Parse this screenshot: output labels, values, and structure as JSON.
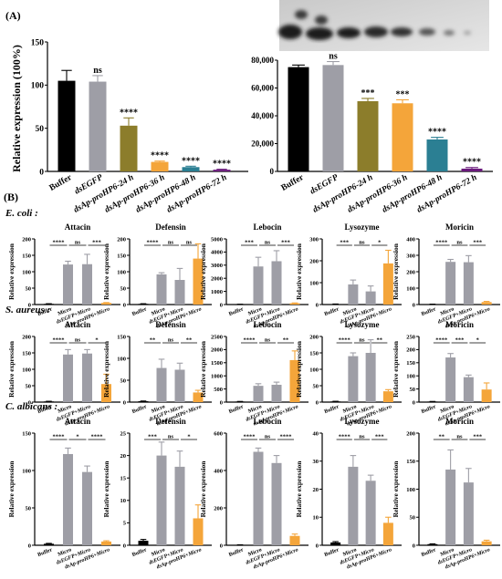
{
  "panel_a_label": "(A)",
  "panel_b_label": "(B)",
  "colors": {
    "black": "#000000",
    "grey": "#9e9ea6",
    "olive": "#8c7d2b",
    "orange": "#f4a53a",
    "teal": "#2b7f93",
    "purple": "#6a1a7c"
  },
  "chart_data": [
    {
      "id": "a1",
      "type": "bar",
      "ylabel": "Relative expression (100%)",
      "ylim": [
        0,
        150
      ],
      "yticks": [
        "0",
        "50",
        "100",
        "150"
      ],
      "categories": [
        "Buffer",
        "dsEGFP",
        "dsAp-proHP6-24 h",
        "dsAp-proHP6-36 h",
        "dsAp-proHP6-48 h",
        "dsAp-proHP6-72 h"
      ],
      "values": [
        105,
        104,
        53,
        11,
        5,
        2
      ],
      "errors": [
        12,
        7,
        9,
        1,
        1,
        0.5
      ],
      "bar_colors": [
        "black",
        "grey",
        "olive",
        "orange",
        "teal",
        "purple"
      ],
      "annotations": [
        "",
        "ns",
        "****",
        "****",
        "****",
        "****"
      ]
    },
    {
      "id": "a2",
      "type": "bar",
      "ylabel": "",
      "ylim": [
        0,
        80000
      ],
      "yticks": [
        "0",
        "20,000",
        "40,000",
        "60,000",
        "80,000"
      ],
      "categories": [
        "Buffer",
        "dsEGFP",
        "dsAp-proHP6-24 h",
        "dsAp-proHP6-36 h",
        "dsAp-proHP6-48 h",
        "dsAp-proHP6-72 h"
      ],
      "values": [
        75000,
        76500,
        50500,
        49000,
        23000,
        2000
      ],
      "errors": [
        1500,
        2500,
        2000,
        2500,
        1500,
        800
      ],
      "bar_colors": [
        "black",
        "grey",
        "olive",
        "orange",
        "teal",
        "purple"
      ],
      "annotations": [
        "",
        "ns",
        "***",
        "***",
        "****",
        "****"
      ]
    },
    {
      "id": "ec_attacin",
      "type": "bar",
      "row": "E. coli :",
      "title": "Attacin",
      "ylabel": "Relative expression",
      "ylim": [
        0,
        200
      ],
      "yticks": [
        "0",
        "50",
        "100",
        "150",
        "200"
      ],
      "categories": [
        "Buffer",
        "Micro",
        "dsEGFP+Micro",
        "dsAp-proHP6+Micro"
      ],
      "values": [
        2,
        122,
        123,
        5
      ],
      "errors": [
        0.5,
        10,
        30,
        1
      ],
      "bar_colors": [
        "black",
        "grey",
        "grey",
        "orange"
      ],
      "sig": [
        "****",
        "ns",
        "***"
      ]
    },
    {
      "id": "ec_defensin",
      "type": "bar",
      "title": "Defensin",
      "ylabel": "Relative expression",
      "ylim": [
        0,
        200
      ],
      "yticks": [
        "0",
        "50",
        "100",
        "150",
        "200"
      ],
      "categories": [
        "Buffer",
        "Micro",
        "dsEGFP+Micro",
        "dsAp-proHP6+Micro"
      ],
      "values": [
        2,
        92,
        75,
        140
      ],
      "errors": [
        0.5,
        5,
        35,
        45
      ],
      "bar_colors": [
        "black",
        "grey",
        "grey",
        "orange"
      ],
      "sig": [
        "****",
        "ns",
        "ns"
      ]
    },
    {
      "id": "ec_lebocin",
      "type": "bar",
      "title": "Lebocin",
      "ylabel": "Relative expression",
      "ylim": [
        0,
        5000
      ],
      "yticks": [
        "0",
        "1000",
        "2000",
        "3000",
        "4000",
        "5000"
      ],
      "categories": [
        "Buffer",
        "Micro",
        "dsEGFP+Micro",
        "dsAp-proHP6+Micro"
      ],
      "values": [
        20,
        2900,
        3300,
        100
      ],
      "errors": [
        5,
        700,
        800,
        20
      ],
      "bar_colors": [
        "black",
        "grey",
        "grey",
        "orange"
      ],
      "sig": [
        "***",
        "ns",
        "***"
      ]
    },
    {
      "id": "ec_lysozyme",
      "type": "bar",
      "title": "Lysozyme",
      "ylabel": "Relative expression",
      "ylim": [
        0,
        300
      ],
      "yticks": [
        "0",
        "100",
        "200",
        "300"
      ],
      "categories": [
        "Buffer",
        "Micro",
        "dsEGFP+Micro",
        "dsAp-proHP6+Micro"
      ],
      "values": [
        2,
        92,
        60,
        188
      ],
      "errors": [
        0.5,
        20,
        25,
        60
      ],
      "bar_colors": [
        "black",
        "grey",
        "grey",
        "orange"
      ],
      "sig": [
        "***",
        "ns",
        "*"
      ]
    },
    {
      "id": "ec_moricin",
      "type": "bar",
      "title": "Moricin",
      "ylabel": "Relative expression",
      "ylim": [
        0,
        400
      ],
      "yticks": [
        "0",
        "100",
        "200",
        "300",
        "400"
      ],
      "categories": [
        "Buffer",
        "Micro",
        "dsEGFP+Micro",
        "dsAp-proHP6+Micro"
      ],
      "values": [
        2,
        260,
        258,
        15
      ],
      "errors": [
        0.5,
        15,
        40,
        4
      ],
      "bar_colors": [
        "black",
        "grey",
        "grey",
        "orange"
      ],
      "sig": [
        "****",
        "ns",
        "***"
      ]
    },
    {
      "id": "sa_attacin",
      "type": "bar",
      "row": "S. aureus :",
      "title": "Attacin",
      "ylabel": "Relative expression",
      "ylim": [
        0,
        200
      ],
      "yticks": [
        "0",
        "50",
        "100",
        "150",
        "200"
      ],
      "categories": [
        "Buffer",
        "Micro",
        "dsEGFP+Micro",
        "dsAp-proHP6+Micro"
      ],
      "values": [
        2,
        145,
        148,
        55
      ],
      "errors": [
        0.5,
        15,
        12,
        30
      ],
      "bar_colors": [
        "black",
        "grey",
        "grey",
        "orange"
      ],
      "sig": [
        "****",
        "ns",
        "*"
      ]
    },
    {
      "id": "sa_defensin",
      "type": "bar",
      "title": "Defensin",
      "ylabel": "Relative expression",
      "ylim": [
        0,
        150
      ],
      "yticks": [
        "0",
        "50",
        "100",
        "150"
      ],
      "categories": [
        "Buffer",
        "Micro",
        "dsEGFP+Micro",
        "dsAp-proHP6+Micro"
      ],
      "values": [
        2,
        78,
        74,
        22
      ],
      "errors": [
        0.5,
        20,
        15,
        5
      ],
      "bar_colors": [
        "black",
        "grey",
        "grey",
        "orange"
      ],
      "sig": [
        "**",
        "ns",
        "**"
      ]
    },
    {
      "id": "sa_lebocin",
      "type": "bar",
      "title": "Lebocin",
      "ylabel": "Relative expression",
      "ylim": [
        0,
        2500
      ],
      "yticks": [
        "0",
        "500",
        "1000",
        "1500",
        "2000",
        "2500"
      ],
      "categories": [
        "Buffer",
        "Micro",
        "dsEGFP+Micro",
        "dsAp-proHP6+Micro"
      ],
      "values": [
        20,
        620,
        660,
        1600
      ],
      "errors": [
        5,
        80,
        100,
        350
      ],
      "bar_colors": [
        "black",
        "grey",
        "grey",
        "orange"
      ],
      "sig": [
        "****",
        "ns",
        "**"
      ]
    },
    {
      "id": "sa_lysozyme",
      "type": "bar",
      "title": "Lysozyme",
      "ylabel": "Relative expression",
      "ylim": [
        0,
        200
      ],
      "yticks": [
        "0",
        "50",
        "100",
        "150",
        "200"
      ],
      "categories": [
        "Buffer",
        "Micro",
        "dsEGFP+Micro",
        "dsAp-proHP6+Micro"
      ],
      "values": [
        2,
        140,
        150,
        33
      ],
      "errors": [
        0.5,
        10,
        40,
        5
      ],
      "bar_colors": [
        "black",
        "grey",
        "grey",
        "orange"
      ],
      "sig": [
        "****",
        "ns",
        "**"
      ]
    },
    {
      "id": "sa_moricin",
      "type": "bar",
      "title": "Moricin",
      "ylabel": "Relative expression",
      "ylim": [
        0,
        250
      ],
      "yticks": [
        "0",
        "50",
        "100",
        "150",
        "200",
        "250"
      ],
      "categories": [
        "Buffer",
        "Micro",
        "dsEGFP+Micro",
        "dsAp-proHP6+Micro"
      ],
      "values": [
        2,
        170,
        95,
        48
      ],
      "errors": [
        0.5,
        15,
        8,
        25
      ],
      "bar_colors": [
        "black",
        "grey",
        "grey",
        "orange"
      ],
      "sig": [
        "****",
        "***",
        "*"
      ]
    },
    {
      "id": "ca_attacin",
      "type": "bar",
      "row": "C. albicans :",
      "title": "Attacin",
      "ylabel": "Relative expression",
      "ylim": [
        0,
        150
      ],
      "yticks": [
        "0",
        "50",
        "100",
        "150"
      ],
      "categories": [
        "Buffer",
        "Micro",
        "dsEGFP+Micro",
        "dsAp-proHP6+Micro"
      ],
      "values": [
        2,
        122,
        98,
        5
      ],
      "errors": [
        0.5,
        8,
        8,
        1
      ],
      "bar_colors": [
        "black",
        "grey",
        "grey",
        "orange"
      ],
      "sig": [
        "****",
        "*",
        "****"
      ]
    },
    {
      "id": "ca_defensin",
      "type": "bar",
      "title": "Defensin",
      "ylabel": "Relative expression",
      "ylim": [
        0,
        25
      ],
      "yticks": [
        "0",
        "5",
        "10",
        "15",
        "20",
        "25"
      ],
      "categories": [
        "Buffer",
        "Micro",
        "dsEGFP+Micro",
        "dsAp-proHP6+Micro"
      ],
      "values": [
        1,
        20,
        17.5,
        6
      ],
      "errors": [
        0.3,
        3,
        3.5,
        3
      ],
      "bar_colors": [
        "black",
        "grey",
        "grey",
        "orange"
      ],
      "sig": [
        "***",
        "ns",
        "*"
      ]
    },
    {
      "id": "ca_lebocin",
      "type": "bar",
      "title": "Lebocin",
      "ylabel": "Relative expression",
      "ylim": [
        0,
        600
      ],
      "yticks": [
        "0",
        "200",
        "400",
        "600"
      ],
      "categories": [
        "Buffer",
        "Micro",
        "dsEGFP+Micro",
        "dsAp-proHP6+Micro"
      ],
      "values": [
        2,
        500,
        440,
        50
      ],
      "errors": [
        0.5,
        20,
        40,
        10
      ],
      "bar_colors": [
        "black",
        "grey",
        "grey",
        "orange"
      ],
      "sig": [
        "****",
        "ns",
        "****"
      ]
    },
    {
      "id": "ca_lysozyme",
      "type": "bar",
      "title": "Lysozyme",
      "ylabel": "Relative expression",
      "ylim": [
        0,
        40
      ],
      "yticks": [
        "0",
        "10",
        "20",
        "30",
        "40"
      ],
      "categories": [
        "Buffer",
        "Micro",
        "dsEGFP+Micro",
        "dsAp-proHP6+Micro"
      ],
      "values": [
        1,
        28,
        23,
        8
      ],
      "errors": [
        0.3,
        4,
        2,
        2
      ],
      "bar_colors": [
        "black",
        "grey",
        "grey",
        "orange"
      ],
      "sig": [
        "****",
        "ns",
        "***"
      ]
    },
    {
      "id": "ca_moricin",
      "type": "bar",
      "title": "Moricin",
      "ylabel": "Relative expression",
      "ylim": [
        0,
        200
      ],
      "yticks": [
        "0",
        "50",
        "100",
        "150",
        "200"
      ],
      "categories": [
        "Buffer",
        "Micro",
        "dsEGFP+Micro",
        "dsAp-proHP6+Micro"
      ],
      "values": [
        2,
        135,
        112,
        7
      ],
      "errors": [
        0.5,
        35,
        25,
        2
      ],
      "bar_colors": [
        "black",
        "grey",
        "grey",
        "orange"
      ],
      "sig": [
        "**",
        "ns",
        "***"
      ]
    }
  ]
}
